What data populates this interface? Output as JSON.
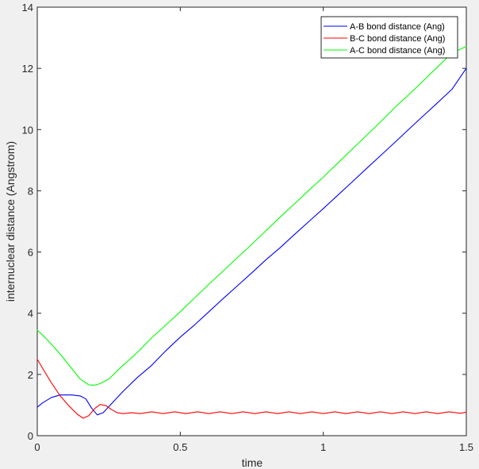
{
  "chart_data": {
    "type": "line",
    "xlabel": "time",
    "ylabel": "internuclear distance (Angstrom)",
    "xlim": [
      0,
      1.5
    ],
    "ylim": [
      0,
      14
    ],
    "xticks": [
      0,
      0.5,
      1,
      1.5
    ],
    "xtick_labels": [
      "0",
      "0.5",
      "1",
      "1.5"
    ],
    "yticks": [
      0,
      2,
      4,
      6,
      8,
      10,
      12,
      14
    ],
    "ytick_labels": [
      "0",
      "2",
      "4",
      "6",
      "8",
      "10",
      "12",
      "14"
    ],
    "grid": false,
    "legend_position": "top-right",
    "colors": {
      "figure_background": "#f0f0f0",
      "axes_background": "#ffffff",
      "axes_edge": "#262626"
    },
    "series": [
      {
        "name": "A-B bond distance (Ang)",
        "color": "#0000ff",
        "points": [
          [
            0,
            0.93
          ],
          [
            0.02,
            1.08
          ],
          [
            0.05,
            1.25
          ],
          [
            0.08,
            1.33
          ],
          [
            0.12,
            1.33
          ],
          [
            0.15,
            1.3
          ],
          [
            0.17,
            1.2
          ],
          [
            0.19,
            0.9
          ],
          [
            0.21,
            0.68
          ],
          [
            0.23,
            0.75
          ],
          [
            0.25,
            0.95
          ],
          [
            0.3,
            1.45
          ],
          [
            0.35,
            1.9
          ],
          [
            0.4,
            2.3
          ],
          [
            0.45,
            2.78
          ],
          [
            0.5,
            3.22
          ],
          [
            0.55,
            3.62
          ],
          [
            0.6,
            4.05
          ],
          [
            0.65,
            4.48
          ],
          [
            0.7,
            4.9
          ],
          [
            0.75,
            5.32
          ],
          [
            0.8,
            5.75
          ],
          [
            0.85,
            6.15
          ],
          [
            0.9,
            6.58
          ],
          [
            0.95,
            7.0
          ],
          [
            1.0,
            7.42
          ],
          [
            1.05,
            7.85
          ],
          [
            1.1,
            8.28
          ],
          [
            1.15,
            8.72
          ],
          [
            1.2,
            9.15
          ],
          [
            1.25,
            9.58
          ],
          [
            1.3,
            10.02
          ],
          [
            1.35,
            10.45
          ],
          [
            1.4,
            10.88
          ],
          [
            1.45,
            11.32
          ],
          [
            1.5,
            12.0
          ]
        ]
      },
      {
        "name": "B-C bond distance (Ang)",
        "color": "#ff0000",
        "points": [
          [
            0,
            2.5
          ],
          [
            0.02,
            2.18
          ],
          [
            0.05,
            1.72
          ],
          [
            0.08,
            1.3
          ],
          [
            0.11,
            0.98
          ],
          [
            0.14,
            0.7
          ],
          [
            0.16,
            0.57
          ],
          [
            0.18,
            0.65
          ],
          [
            0.2,
            0.88
          ],
          [
            0.22,
            1.02
          ],
          [
            0.24,
            0.98
          ],
          [
            0.26,
            0.85
          ],
          [
            0.28,
            0.75
          ],
          [
            0.3,
            0.72
          ],
          [
            0.33,
            0.75
          ],
          [
            0.36,
            0.72
          ],
          [
            0.4,
            0.78
          ],
          [
            0.44,
            0.72
          ],
          [
            0.48,
            0.78
          ],
          [
            0.52,
            0.72
          ],
          [
            0.56,
            0.78
          ],
          [
            0.6,
            0.72
          ],
          [
            0.64,
            0.78
          ],
          [
            0.68,
            0.72
          ],
          [
            0.72,
            0.78
          ],
          [
            0.76,
            0.72
          ],
          [
            0.8,
            0.78
          ],
          [
            0.84,
            0.72
          ],
          [
            0.88,
            0.78
          ],
          [
            0.92,
            0.72
          ],
          [
            0.96,
            0.78
          ],
          [
            1.0,
            0.72
          ],
          [
            1.04,
            0.78
          ],
          [
            1.08,
            0.72
          ],
          [
            1.12,
            0.78
          ],
          [
            1.16,
            0.72
          ],
          [
            1.2,
            0.78
          ],
          [
            1.24,
            0.72
          ],
          [
            1.28,
            0.78
          ],
          [
            1.32,
            0.72
          ],
          [
            1.36,
            0.78
          ],
          [
            1.4,
            0.72
          ],
          [
            1.44,
            0.78
          ],
          [
            1.48,
            0.73
          ],
          [
            1.5,
            0.77
          ]
        ]
      },
      {
        "name": "A-C bond distance (Ang)",
        "color": "#00ff00",
        "points": [
          [
            0,
            3.45
          ],
          [
            0.03,
            3.18
          ],
          [
            0.06,
            2.88
          ],
          [
            0.09,
            2.55
          ],
          [
            0.12,
            2.2
          ],
          [
            0.15,
            1.85
          ],
          [
            0.18,
            1.66
          ],
          [
            0.2,
            1.65
          ],
          [
            0.22,
            1.7
          ],
          [
            0.25,
            1.85
          ],
          [
            0.3,
            2.3
          ],
          [
            0.35,
            2.72
          ],
          [
            0.4,
            3.2
          ],
          [
            0.45,
            3.62
          ],
          [
            0.5,
            4.05
          ],
          [
            0.55,
            4.5
          ],
          [
            0.6,
            4.95
          ],
          [
            0.65,
            5.38
          ],
          [
            0.7,
            5.82
          ],
          [
            0.75,
            6.25
          ],
          [
            0.8,
            6.7
          ],
          [
            0.85,
            7.15
          ],
          [
            0.9,
            7.58
          ],
          [
            0.95,
            8.02
          ],
          [
            1.0,
            8.45
          ],
          [
            1.05,
            8.9
          ],
          [
            1.1,
            9.35
          ],
          [
            1.15,
            9.8
          ],
          [
            1.2,
            10.25
          ],
          [
            1.25,
            10.72
          ],
          [
            1.3,
            11.15
          ],
          [
            1.35,
            11.6
          ],
          [
            1.4,
            12.05
          ],
          [
            1.45,
            12.5
          ],
          [
            1.5,
            12.72
          ]
        ]
      }
    ]
  }
}
